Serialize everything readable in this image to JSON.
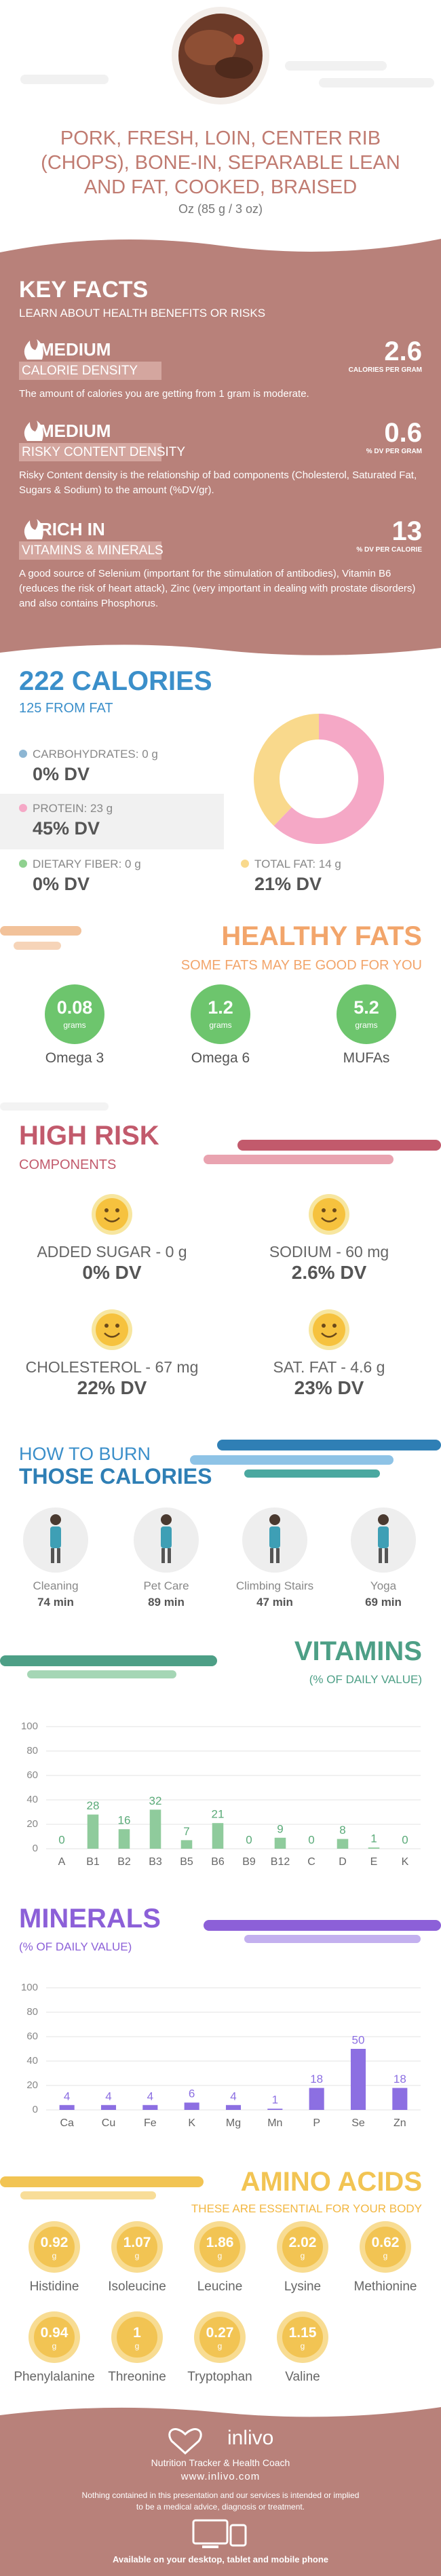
{
  "header": {
    "title": "PORK, FRESH, LOIN, CENTER RIB (CHOPS), BONE-IN, SEPARABLE LEAN AND FAT, COOKED, BRAISED",
    "serving": "Oz (85 g / 3 oz)"
  },
  "key_facts": {
    "title": "KEY FACTS",
    "subtitle": "LEARN ABOUT HEALTH BENEFITS OR RISKS",
    "items": [
      {
        "level": "MEDIUM",
        "label": "CALORIE DENSITY",
        "value": 2.6,
        "unit": "CALORIES PER GRAM",
        "description": "The amount of calories you are getting from 1 gram is moderate."
      },
      {
        "level": "MEDIUM",
        "label": "RISKY CONTENT DENSITY",
        "value": 0.6,
        "unit": "% DV PER GRAM",
        "description": "Risky Content density is the relationship of bad components (Cholesterol, Saturated Fat, Sugars & Sodium) to the amount (%DV/gr)."
      },
      {
        "level": "RICH IN",
        "label": "VITAMINS & MINERALS",
        "value": 13,
        "unit": "% DV PER CALORIE",
        "description": "A good source of Selenium (important for the stimulation of antibodies), Vitamin B6 (reduces the risk of heart attack), Zinc (very important in dealing with prostate disorders) and also contains Phosphorus."
      }
    ]
  },
  "calories": {
    "title": "222 CALORIES",
    "subtitle": "125 FROM FAT",
    "nutrients": [
      {
        "label": "CARBOHYDRATES: 0 g",
        "grams": 0,
        "dv": "0% DV",
        "color": "#8db6d3"
      },
      {
        "label": "PROTEIN: 23 g",
        "grams": 23,
        "dv": "45% DV",
        "color": "#f5a8c6"
      },
      {
        "label": "DIETARY FIBER: 0 g",
        "grams": 0,
        "dv": "0% DV",
        "color": "#8fd18f"
      },
      {
        "label": "TOTAL FAT: 14 g",
        "grams": 14,
        "dv": "21% DV",
        "color": "#f9d98c"
      }
    ]
  },
  "healthy_fats": {
    "title": "HEALTHY FATS",
    "subtitle": "SOME FATS MAY BE GOOD FOR YOU",
    "unit": "grams",
    "color": "#6dc56d",
    "items": [
      {
        "value": 0.08,
        "name": "Omega 3"
      },
      {
        "value": 1.2,
        "name": "Omega 6"
      },
      {
        "value": 5.2,
        "name": "MUFAs"
      }
    ]
  },
  "high_risk": {
    "title": "HIGH RISK",
    "subtitle": "COMPONENTS",
    "items": [
      {
        "label": "ADDED SUGAR - 0 g",
        "dv": "0% DV"
      },
      {
        "label": "SODIUM - 60 mg",
        "dv": "2.6% DV"
      },
      {
        "label": "CHOLESTEROL - 67 mg",
        "dv": "22% DV"
      },
      {
        "label": "SAT. FAT - 4.6 g",
        "dv": "23% DV"
      }
    ]
  },
  "burn": {
    "title": "HOW TO BURN",
    "subtitle": "THOSE CALORIES",
    "items": [
      {
        "activity": "Cleaning",
        "time": "74 min"
      },
      {
        "activity": "Pet Care",
        "time": "89 min"
      },
      {
        "activity": "Climbing Stairs",
        "time": "47 min"
      },
      {
        "activity": "Yoga",
        "time": "69 min"
      }
    ]
  },
  "chart_data": [
    {
      "type": "bar",
      "title": "VITAMINS",
      "subtitle": "(% OF DAILY VALUE)",
      "categories": [
        "A",
        "B1",
        "B2",
        "B3",
        "B5",
        "B6",
        "B9",
        "B12",
        "C",
        "D",
        "E",
        "K"
      ],
      "values": [
        0,
        28,
        16,
        32,
        7,
        21,
        0,
        9,
        0,
        8,
        1,
        0
      ],
      "color": "#8fcb9c",
      "label_color": "#5aaa78",
      "ylim": [
        0,
        100
      ],
      "yticks": [
        0,
        20,
        40,
        60,
        80,
        100
      ],
      "grid": true
    },
    {
      "type": "bar",
      "title": "MINERALS",
      "subtitle": "(% OF DAILY VALUE)",
      "categories": [
        "Ca",
        "Cu",
        "Fe",
        "K",
        "Mg",
        "Mn",
        "P",
        "Se",
        "Zn"
      ],
      "values": [
        4,
        4,
        4,
        6,
        4,
        1,
        18,
        50,
        18
      ],
      "color": "#8c6fe2",
      "label_color": "#8c6fe2",
      "ylim": [
        0,
        100
      ],
      "yticks": [
        0,
        20,
        40,
        60,
        80,
        100
      ],
      "grid": true
    }
  ],
  "amino_acids": {
    "title": "AMINO ACIDS",
    "subtitle": "THESE ARE ESSENTIAL FOR YOUR BODY",
    "unit": "g",
    "items": [
      {
        "name": "Histidine",
        "value": 0.92
      },
      {
        "name": "Isoleucine",
        "value": 1.07
      },
      {
        "name": "Leucine",
        "value": 1.86
      },
      {
        "name": "Lysine",
        "value": 2.02
      },
      {
        "name": "Methionine",
        "value": 0.62
      },
      {
        "name": "Phenylalanine",
        "value": 0.94
      },
      {
        "name": "Threonine",
        "value": 1
      },
      {
        "name": "Tryptophan",
        "value": 0.27
      },
      {
        "name": "Valine",
        "value": 1.15
      }
    ]
  },
  "footer": {
    "brand": "inlivo",
    "tagline": "Nutrition Tracker & Health Coach",
    "url": "www.inlivo.com",
    "disclaimer": "Nothing contained in this presentation and our services is intended or implied to be a medical advice, diagnosis or treatment.",
    "available": "Available on your desktop, tablet and mobile phone"
  }
}
